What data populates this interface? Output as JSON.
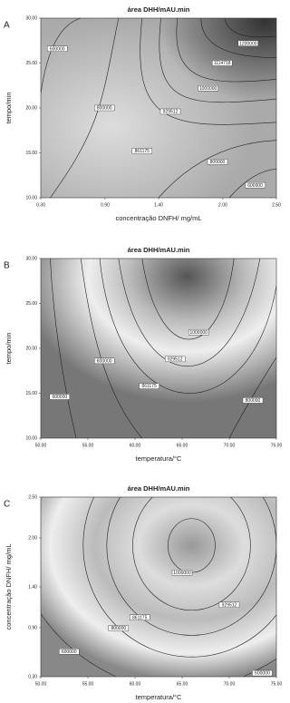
{
  "chart_data": [
    {
      "type": "contour",
      "panel": "A",
      "title": "área DHH/mAU.min",
      "x_label": "concentração DNFH/ mg/mL",
      "y_label": "tempo/min",
      "xlim": [
        0.3,
        2.5
      ],
      "xticks": [
        {
          "value": 0.3,
          "label": "0.30"
        },
        {
          "value": 0.9,
          "label": "0.90"
        },
        {
          "value": 1.4,
          "label": "1.40"
        },
        {
          "value": 2.0,
          "label": "2.00"
        },
        {
          "value": 2.5,
          "label": "2.50"
        }
      ],
      "ylim": [
        10,
        30
      ],
      "yticks": [
        {
          "value": 10,
          "label": "10.00"
        },
        {
          "value": 15,
          "label": "15.00"
        },
        {
          "value": 20,
          "label": "20.00"
        },
        {
          "value": 25,
          "label": "25.00"
        },
        {
          "value": 30,
          "label": "30.00"
        }
      ],
      "levels": [
        600000,
        800000,
        861175,
        929512,
        1000000,
        1114718,
        1200000,
        800000,
        600000
      ]
    },
    {
      "type": "contour",
      "panel": "B",
      "title": "área DHH/mAU.min",
      "x_label": "temperatura/°C",
      "y_label": "tempo/min",
      "xlim": [
        50,
        75
      ],
      "xticks": [
        {
          "value": 50,
          "label": "50.00"
        },
        {
          "value": 55,
          "label": "55.00"
        },
        {
          "value": 60,
          "label": "60.00"
        },
        {
          "value": 65,
          "label": "65.00"
        },
        {
          "value": 70,
          "label": "70.00"
        },
        {
          "value": 75,
          "label": "75.00"
        }
      ],
      "ylim": [
        10,
        30
      ],
      "yticks": [
        {
          "value": 10,
          "label": "10.00"
        },
        {
          "value": 15,
          "label": "15.00"
        },
        {
          "value": 20,
          "label": "20.00"
        },
        {
          "value": 25,
          "label": "25.00"
        },
        {
          "value": 30,
          "label": "30.00"
        }
      ],
      "levels": [
        1000000,
        929512,
        861175,
        800000,
        800000,
        600000
      ]
    },
    {
      "type": "contour",
      "panel": "C",
      "title": "área DHH/mAU.min",
      "x_label": "temperatura/°C",
      "y_label": "concentração DNFH/ mg/mL",
      "xlim": [
        50,
        75
      ],
      "xticks": [
        {
          "value": 50,
          "label": "50.00"
        },
        {
          "value": 55,
          "label": "55.00"
        },
        {
          "value": 60,
          "label": "60.00"
        },
        {
          "value": 65,
          "label": "65.00"
        },
        {
          "value": 70,
          "label": "70.00"
        },
        {
          "value": 75,
          "label": "75.00"
        }
      ],
      "ylim": [
        0.3,
        2.5
      ],
      "yticks": [
        {
          "value": 0.3,
          "label": "0.30"
        },
        {
          "value": 0.9,
          "label": "0.90"
        },
        {
          "value": 1.4,
          "label": "1.40"
        },
        {
          "value": 2.0,
          "label": "2.00"
        },
        {
          "value": 2.5,
          "label": "2.50"
        }
      ],
      "levels": [
        1000000,
        929512,
        861175,
        800000,
        600000,
        600000
      ]
    }
  ]
}
